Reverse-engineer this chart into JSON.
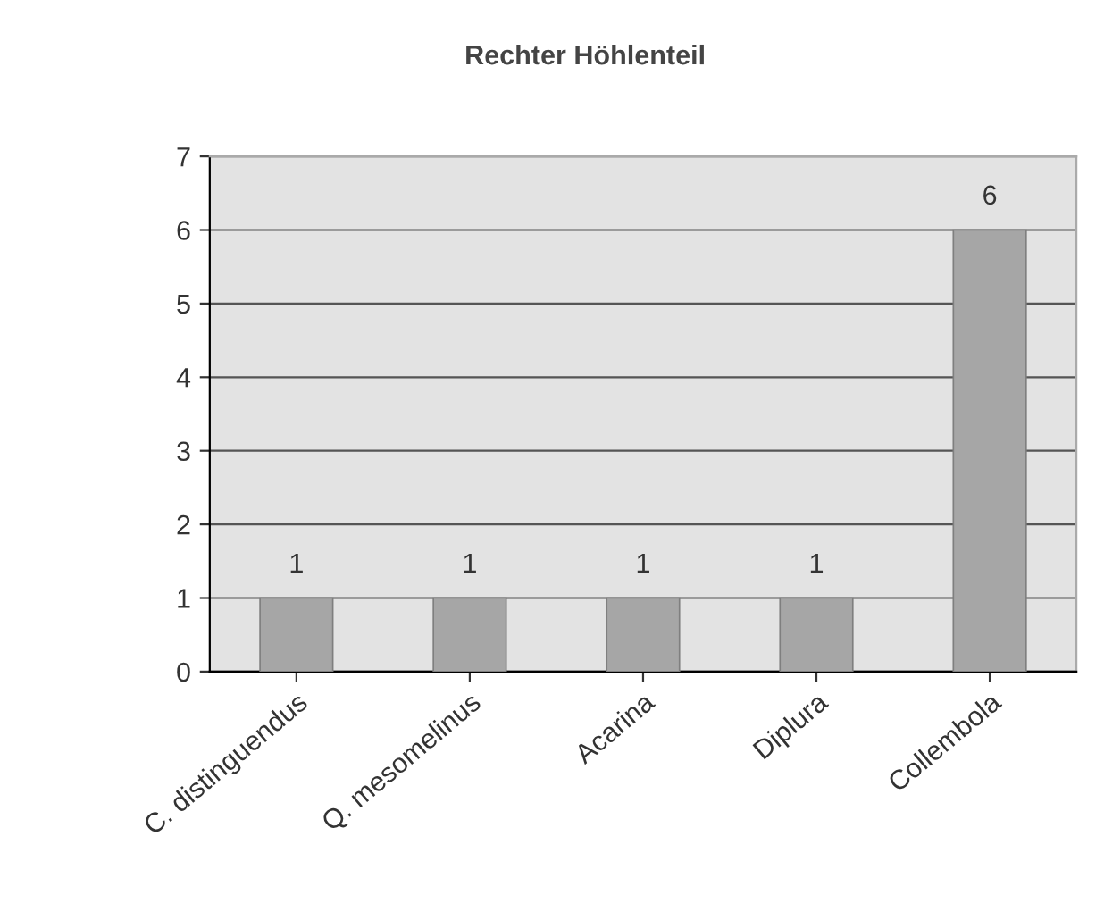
{
  "chart_data": {
    "type": "bar",
    "title": "Rechter Höhlenteil",
    "categories": [
      "C. distinguendus",
      "Q. mesomelinus",
      "Acarina",
      "Diplura",
      "Collembola"
    ],
    "values": [
      1,
      1,
      1,
      1,
      6
    ],
    "color": "#a6a6a6",
    "ylim": [
      0,
      7
    ],
    "yticks": [
      0,
      1,
      2,
      3,
      4,
      5,
      6,
      7
    ],
    "grid": "y",
    "data_labels": true
  }
}
